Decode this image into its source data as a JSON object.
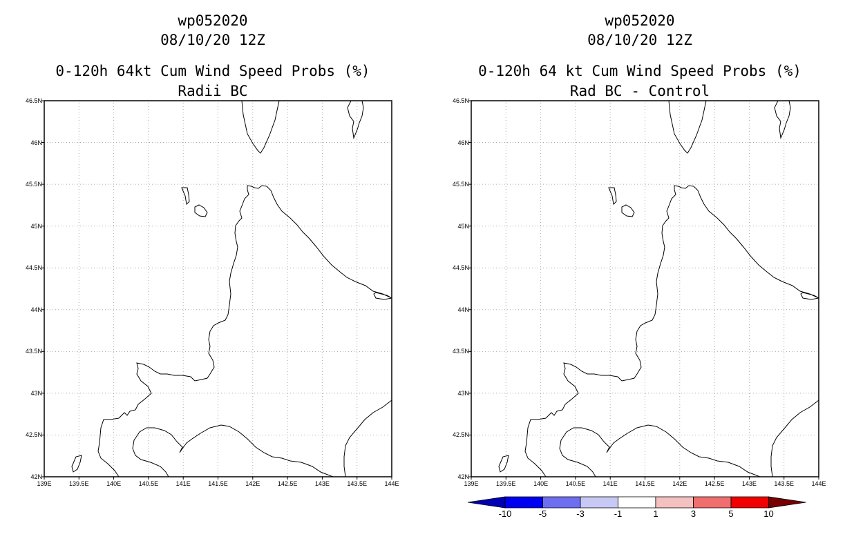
{
  "left_panel": {
    "storm_id": "wp052020",
    "datetime": "08/10/20 12Z",
    "product": "0-120h 64kt Cum Wind Speed Probs (%)",
    "subtitle": "Radii BC"
  },
  "right_panel": {
    "storm_id": "wp052020",
    "datetime": "08/10/20 12Z",
    "product": "0-120h 64 kt Cum Wind Speed Probs (%)",
    "subtitle": "Rad BC - Control"
  },
  "map_extent": {
    "lon_min": 139.0,
    "lon_max": 144.0,
    "lat_min": 42.0,
    "lat_max": 46.5
  },
  "lat_labels": [
    "42N",
    "42.5N",
    "43N",
    "43.5N",
    "44N",
    "44.5N",
    "45N",
    "45.5N",
    "46N",
    "46.5N"
  ],
  "lon_labels": [
    "139E",
    "139.5E",
    "140E",
    "140.5E",
    "141E",
    "141.5E",
    "142E",
    "142.5E",
    "143E",
    "143.5E",
    "144E"
  ],
  "colorbar": {
    "labels": [
      "-10",
      "-5",
      "-3",
      "-1",
      "1",
      "3",
      "5",
      "10"
    ],
    "colors": [
      "#0000b4",
      "#0000f0",
      "#6e6ef0",
      "#c8c8f5",
      "#ffffff",
      "#f5c0c0",
      "#f06e6e",
      "#f00000",
      "#780000"
    ]
  }
}
